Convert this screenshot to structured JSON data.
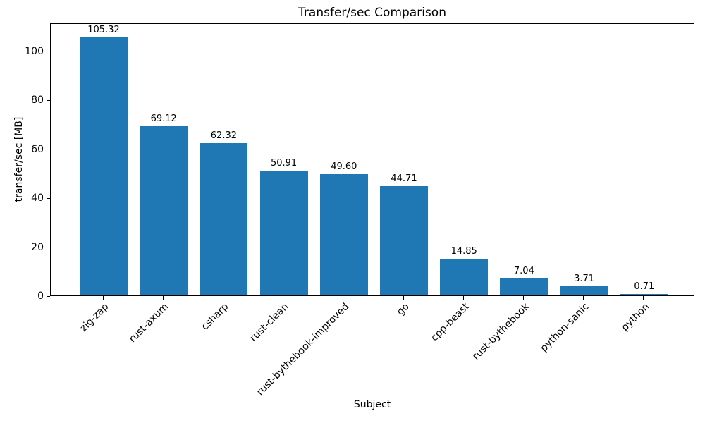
{
  "figure": {
    "title": "Transfer/sec Comparison"
  },
  "chart_data": {
    "type": "bar",
    "title": "Transfer/sec Comparison",
    "xlabel": "Subject",
    "ylabel": "transfer/sec [MB]",
    "categories": [
      "zig-zap",
      "rust-axum",
      "csharp",
      "rust-clean",
      "rust-bythebook-improved",
      "go",
      "cpp-beast",
      "rust-bythebook",
      "python-sanic",
      "python"
    ],
    "values": [
      105.32,
      69.12,
      62.32,
      50.91,
      49.6,
      44.71,
      14.85,
      7.04,
      3.71,
      0.71
    ],
    "bar_labels": [
      "105.32",
      "69.12",
      "62.32",
      "50.91",
      "49.60",
      "44.71",
      "14.85",
      "7.04",
      "3.71",
      "0.71"
    ],
    "yticks": [
      0,
      20,
      40,
      60,
      80,
      100
    ],
    "ylim": [
      0,
      111.5
    ],
    "xtick_rotation_deg": 45,
    "grid": false,
    "legend": null,
    "bar_color": "#1f77b4",
    "frame_color": "#000000",
    "background_color": "#ffffff",
    "text_color": "#000000"
  }
}
